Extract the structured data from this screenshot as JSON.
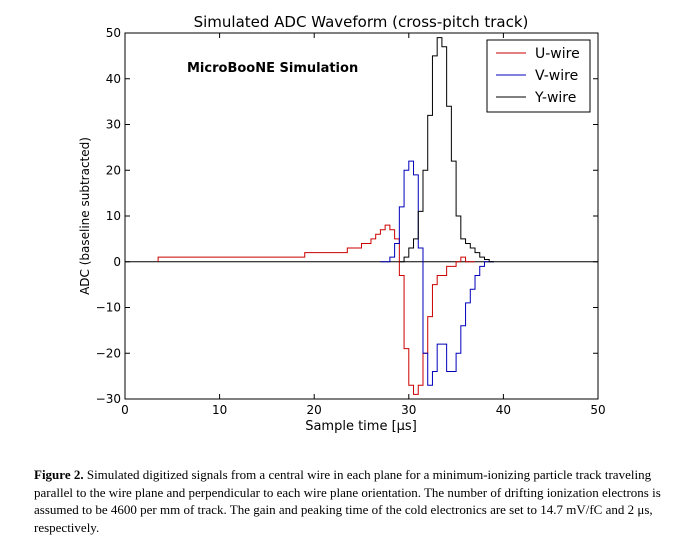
{
  "chart_data": {
    "type": "line",
    "title": "Simulated ADC Waveform (cross-pitch track)",
    "annotation": "MicroBooNE Simulation",
    "xlabel": "Sample time [μs]",
    "ylabel": "ADC (baseline subtracted)",
    "xlim": [
      0,
      50
    ],
    "ylim": [
      -30,
      50
    ],
    "xticks": [
      "0",
      "10",
      "20",
      "30",
      "40",
      "50"
    ],
    "yticks": [
      "−30",
      "−20",
      "−10",
      "0",
      "10",
      "20",
      "30",
      "40",
      "50"
    ],
    "x_tick_values": [
      0,
      10,
      20,
      30,
      40,
      50
    ],
    "y_tick_values": [
      -30,
      -20,
      -10,
      0,
      10,
      20,
      30,
      40,
      50
    ],
    "grid": false,
    "legend_position": "top-right",
    "line_style": "steps",
    "baseline": 0,
    "series": [
      {
        "name": "U-wire",
        "color": "#cc0000",
        "x": [
          3.5,
          19,
          23.5,
          25,
          26,
          26.5,
          27,
          27.5,
          28,
          28.5,
          29,
          29.5,
          30,
          30.5,
          31,
          31.5,
          32,
          32.5,
          33,
          34,
          35,
          35.5,
          36,
          37
        ],
        "y": [
          1,
          2,
          3,
          4,
          5,
          6,
          7,
          8,
          7,
          5,
          -3,
          -19,
          -27,
          -29,
          -27,
          -20,
          -12,
          -5,
          -3,
          -1,
          0,
          1,
          0,
          0
        ]
      },
      {
        "name": "V-wire",
        "color": "#0000bb",
        "x": [
          27,
          28,
          28.5,
          29,
          29.5,
          30,
          30.5,
          31,
          31.5,
          32,
          32.5,
          33,
          34,
          35,
          35.5,
          36,
          36.5,
          37,
          37.5,
          38,
          39
        ],
        "y": [
          0,
          1,
          4,
          12,
          20,
          22,
          19,
          3,
          -20,
          -27,
          -24,
          -18,
          -24,
          -20,
          -14,
          -9,
          -6,
          -3,
          -1,
          0,
          0
        ]
      },
      {
        "name": "Y-wire",
        "color": "#000000",
        "x": [
          29,
          29.5,
          30,
          30.5,
          31,
          31.5,
          32,
          32.5,
          33,
          33.5,
          34,
          34.5,
          35,
          35.5,
          36,
          36.5,
          37,
          37.5,
          38,
          38.5,
          39
        ],
        "y": [
          0,
          1,
          3,
          5,
          11,
          20,
          32,
          45,
          49,
          47,
          34,
          22,
          10,
          5,
          4,
          3,
          2,
          1,
          0.5,
          0,
          0
        ]
      }
    ]
  },
  "caption": {
    "label": "Figure 2.",
    "text": "Simulated digitized signals from a central wire in each plane for a minimum-ionizing particle track traveling parallel to the wire plane and perpendicular to each wire plane orientation. The number of drifting ionization electrons is assumed to be 4600 per mm of track. The gain and peaking time of the cold electronics are set to 14.7 mV/fC and 2 μs, respectively."
  }
}
